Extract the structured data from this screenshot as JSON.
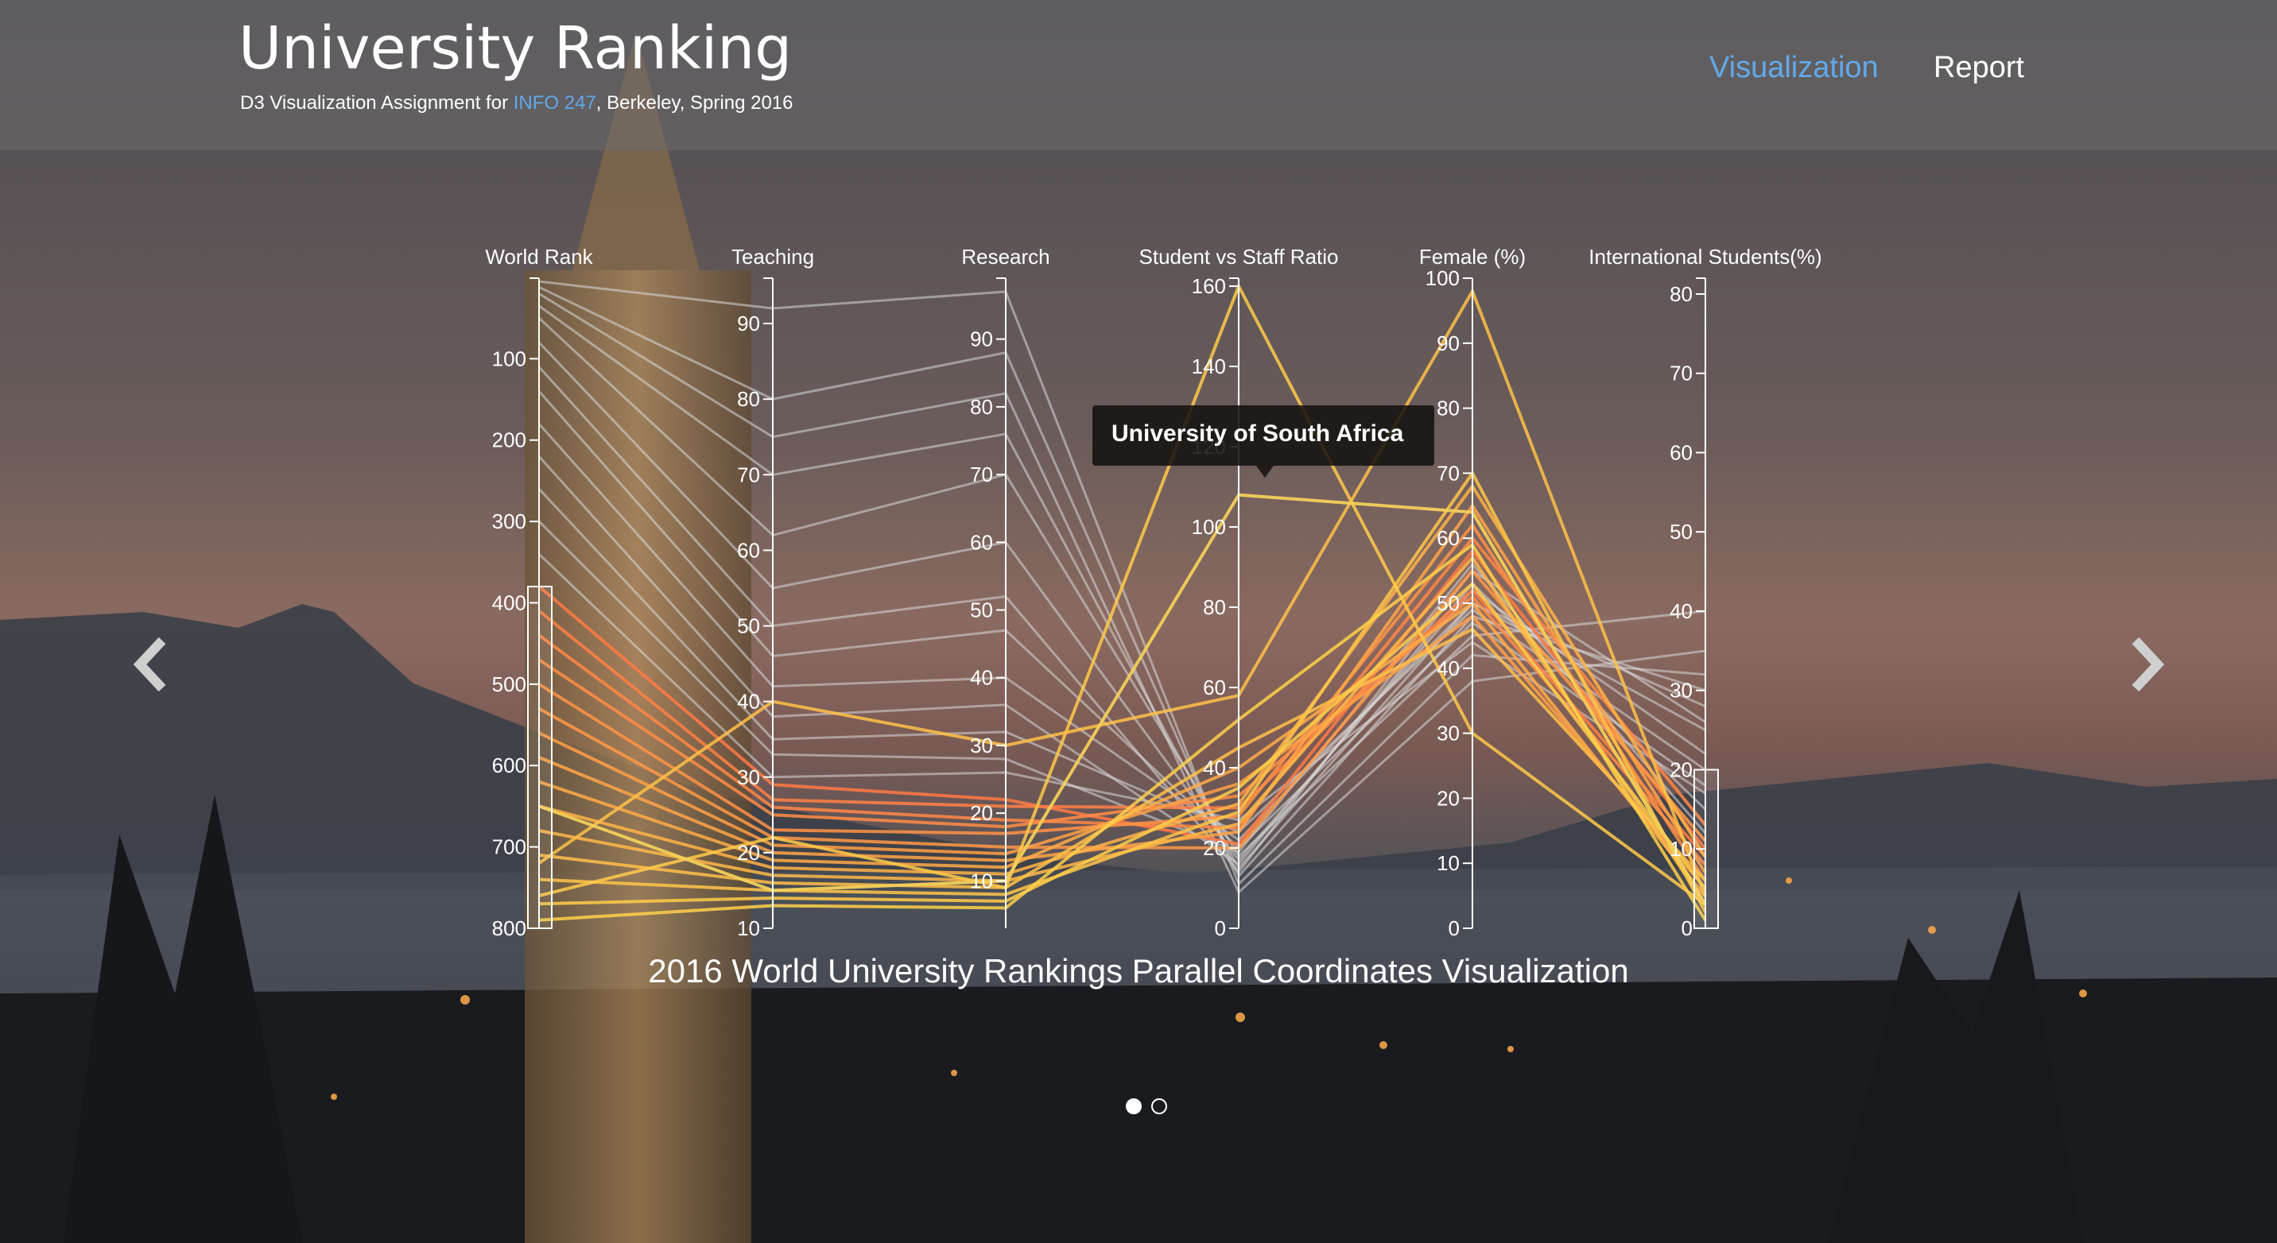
{
  "header": {
    "title": "University Ranking",
    "subtitle_prefix": "D3 Visualization Assignment for ",
    "subtitle_link": "INFO 247",
    "subtitle_suffix": ", Berkeley, Spring 2016"
  },
  "nav": [
    {
      "label": "Visualization",
      "active": true
    },
    {
      "label": "Report",
      "active": false
    }
  ],
  "colors": {
    "active_nav": "#63a9ea",
    "link": "#63a9ea",
    "highlight_high": "#ffd24a",
    "highlight_low": "#ff7a45",
    "context_lines": "#d8d8d8"
  },
  "tooltip": {
    "text": "University of South Africa"
  },
  "caption": "2016 World University Rankings Parallel Coordinates Visualization",
  "carousel": {
    "prev_icon": "chevron-left-icon",
    "next_icon": "chevron-right-icon",
    "slides": 2,
    "active_slide": 1
  },
  "chart_data": {
    "type": "parallel-coordinates",
    "title": "",
    "axes": [
      {
        "name": "World Rank",
        "domain": [
          1,
          800
        ],
        "inverted": true,
        "ticks": [
          "100",
          "200",
          "300",
          "400",
          "500",
          "600",
          "700",
          "800"
        ],
        "brush": [
          380,
          800
        ]
      },
      {
        "name": "Teaching",
        "domain": [
          10,
          96
        ],
        "ticks": [
          "10",
          "20",
          "30",
          "40",
          "50",
          "60",
          "70",
          "80",
          "90"
        ]
      },
      {
        "name": "Research",
        "domain": [
          3,
          99
        ],
        "ticks": [
          "10",
          "20",
          "30",
          "40",
          "50",
          "60",
          "70",
          "80",
          "90"
        ]
      },
      {
        "name": "Student vs Staff Ratio",
        "domain": [
          0,
          162
        ],
        "ticks": [
          "0",
          "20",
          "40",
          "60",
          "80",
          "100",
          "120",
          "140",
          "160"
        ]
      },
      {
        "name": "Female (%)",
        "domain": [
          0,
          100
        ],
        "ticks": [
          "0",
          "10",
          "20",
          "30",
          "40",
          "50",
          "60",
          "70",
          "80",
          "90",
          "100"
        ]
      },
      {
        "name": "International Students(%)",
        "domain": [
          0,
          82
        ],
        "ticks": [
          "0",
          "10",
          "20",
          "30",
          "40",
          "50",
          "60",
          "70",
          "80"
        ],
        "brush": [
          0,
          20
        ]
      }
    ],
    "highlighted_series": {
      "name": "University of South Africa",
      "values": [
        650,
        15,
        10,
        108,
        64,
        3
      ]
    },
    "sample_lines": [
      [
        5,
        92,
        97,
        11,
        42,
        32
      ],
      [
        12,
        80,
        88,
        13,
        48,
        30
      ],
      [
        20,
        75,
        82,
        9,
        38,
        35
      ],
      [
        35,
        70,
        76,
        15,
        50,
        28
      ],
      [
        50,
        62,
        70,
        18,
        45,
        40
      ],
      [
        80,
        55,
        60,
        17,
        52,
        22
      ],
      [
        110,
        50,
        52,
        14,
        55,
        26
      ],
      [
        140,
        46,
        47,
        20,
        47,
        18
      ],
      [
        180,
        42,
        40,
        22,
        50,
        25
      ],
      [
        220,
        38,
        36,
        16,
        53,
        15
      ],
      [
        260,
        35,
        32,
        24,
        49,
        20
      ],
      [
        300,
        33,
        28,
        19,
        56,
        12
      ],
      [
        340,
        30,
        26,
        27,
        44,
        17
      ],
      [
        380,
        29,
        22,
        21,
        58,
        10
      ],
      [
        410,
        27,
        21,
        30,
        52,
        9
      ],
      [
        440,
        26,
        19,
        25,
        60,
        13
      ],
      [
        470,
        25,
        18,
        33,
        51,
        8
      ],
      [
        500,
        23,
        17,
        28,
        62,
        6
      ],
      [
        530,
        22,
        15,
        20,
        55,
        11
      ],
      [
        560,
        21,
        14,
        36,
        48,
        5
      ],
      [
        590,
        20,
        13,
        24,
        65,
        7
      ],
      [
        620,
        19,
        12,
        40,
        50,
        4
      ],
      [
        650,
        18,
        11,
        31,
        68,
        9
      ],
      [
        680,
        17,
        10,
        26,
        57,
        3
      ],
      [
        710,
        16,
        9,
        45,
        46,
        6
      ],
      [
        740,
        15,
        8,
        29,
        70,
        2
      ],
      [
        770,
        14,
        7,
        35,
        53,
        5
      ],
      [
        790,
        13,
        6,
        52,
        59,
        1
      ],
      [
        760,
        22,
        9,
        160,
        30,
        3
      ],
      [
        720,
        40,
        30,
        58,
        98,
        4
      ]
    ],
    "line_count_estimate": 800,
    "grid": false,
    "legend": "none"
  }
}
